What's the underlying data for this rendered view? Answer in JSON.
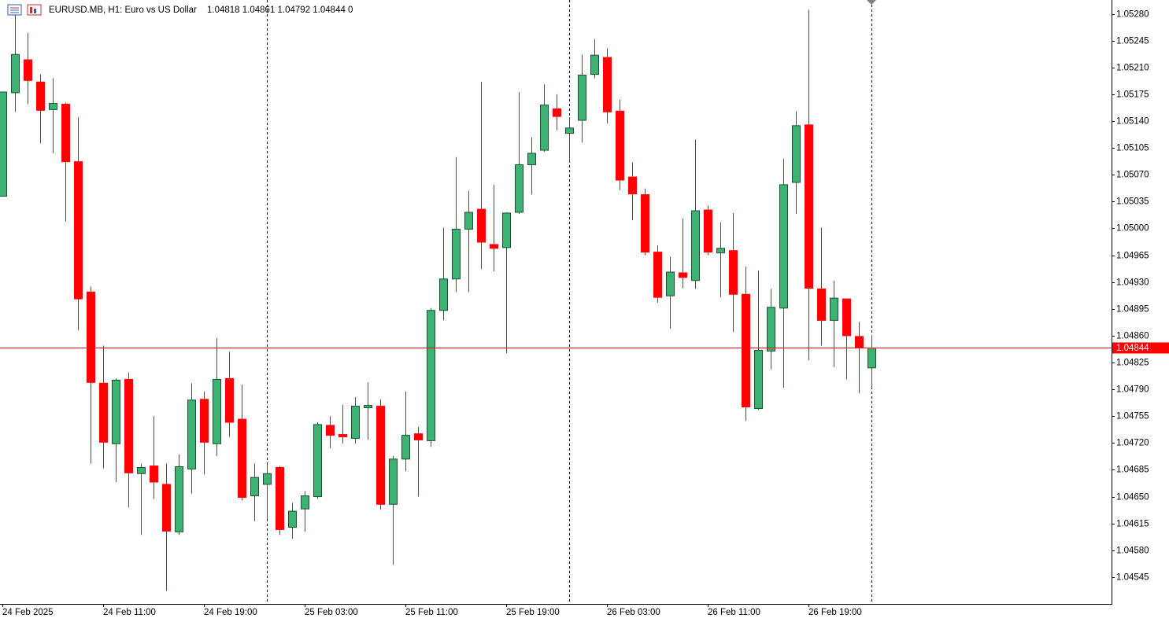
{
  "chart_data": {
    "type": "candlestick",
    "title": "EURUSD.MB, H1:  Euro vs US Dollar",
    "subtitle": "1.04818 1.04861 1.04792 1.04844  0",
    "categories": [
      "24 Feb 2025",
      null,
      null,
      null,
      null,
      null,
      null,
      null,
      "24 Feb 11:00",
      null,
      null,
      null,
      null,
      null,
      null,
      null,
      "24 Feb 19:00",
      null,
      null,
      null,
      null,
      null,
      null,
      null,
      "25 Feb 03:00",
      null,
      null,
      null,
      null,
      null,
      null,
      null,
      "25 Feb 11:00",
      null,
      null,
      null,
      null,
      null,
      null,
      null,
      "25 Feb 19:00",
      null,
      null,
      null,
      null,
      null,
      null,
      null,
      "26 Feb 03:00",
      null,
      null,
      null,
      null,
      null,
      null,
      null,
      "26 Feb 11:00",
      null,
      null,
      null,
      null,
      null,
      null,
      null,
      "26 Feb 19:00",
      null,
      null,
      null,
      null,
      null
    ],
    "open": [
      1.05042,
      1.05177,
      1.0522,
      1.05191,
      1.05155,
      1.05162,
      1.05087,
      1.04917,
      1.04798,
      1.04719,
      1.04803,
      1.0468,
      1.0469,
      1.04666,
      1.04604,
      1.04686,
      1.04777,
      1.04719,
      1.04804,
      1.04751,
      1.04651,
      1.04666,
      1.04688,
      1.0461,
      1.04634,
      1.0465,
      1.04743,
      1.04731,
      1.04726,
      1.04766,
      1.04768,
      1.0464,
      1.04699,
      1.04732,
      1.04723,
      1.04893,
      1.04934,
      1.04999,
      1.05025,
      1.04979,
      1.04975,
      1.05021,
      1.05083,
      1.05102,
      1.05156,
      1.05124,
      1.05141,
      1.05201,
      1.05223,
      1.05153,
      1.05067,
      1.05044,
      1.04969,
      1.04912,
      1.04942,
      1.04932,
      1.05024,
      1.04968,
      1.04971,
      1.04914,
      1.04765,
      1.0484,
      1.04896,
      1.0506,
      1.05135,
      1.04921,
      1.0488,
      1.04908,
      1.04859,
      1.04818
    ],
    "high": [
      1.05178,
      1.0528,
      1.05255,
      1.05201,
      1.05196,
      1.05164,
      1.05145,
      1.04924,
      1.04847,
      1.04804,
      1.04812,
      1.04693,
      1.04755,
      1.04693,
      1.04705,
      1.04798,
      1.04787,
      1.04857,
      1.04839,
      1.04796,
      1.04693,
      1.04693,
      1.0469,
      1.04642,
      1.04657,
      1.04747,
      1.04755,
      1.0477,
      1.0478,
      1.04799,
      1.04777,
      1.04703,
      1.04787,
      1.04741,
      1.04896,
      1.05001,
      1.05093,
      1.05049,
      1.05191,
      1.05057,
      1.05021,
      1.05178,
      1.05119,
      1.05188,
      1.05175,
      1.05145,
      1.05227,
      1.05247,
      1.05235,
      1.05168,
      1.05086,
      1.05052,
      1.04978,
      1.04963,
      1.05013,
      1.05116,
      1.0503,
      1.05008,
      1.0502,
      1.0495,
      1.04945,
      1.04921,
      1.05091,
      1.05153,
      1.05285,
      1.05001,
      1.04932,
      1.04908,
      1.04878,
      1.04861
    ],
    "low": [
      1.05042,
      1.05152,
      1.05162,
      1.05111,
      1.05098,
      1.05009,
      1.04867,
      1.04693,
      1.04687,
      1.04669,
      1.04636,
      1.046,
      1.04647,
      1.04527,
      1.046,
      1.04654,
      1.04679,
      1.04703,
      1.04728,
      1.04645,
      1.04618,
      1.04621,
      1.046,
      1.04595,
      1.04604,
      1.04647,
      1.04713,
      1.04719,
      1.04719,
      1.04724,
      1.04633,
      1.04561,
      1.04683,
      1.0465,
      1.04715,
      1.0488,
      1.04917,
      1.04917,
      1.04947,
      1.04944,
      1.04837,
      1.05019,
      1.05044,
      1.051,
      1.05128,
      1.05086,
      1.05112,
      1.05196,
      1.05137,
      1.0505,
      1.05011,
      1.04965,
      1.04903,
      1.04869,
      1.04922,
      1.04921,
      1.04965,
      1.0491,
      1.04865,
      1.04749,
      1.04763,
      1.04816,
      1.04792,
      1.05019,
      1.04828,
      1.04847,
      1.04819,
      1.04803,
      1.04785,
      1.04792
    ],
    "close": [
      1.05178,
      1.05227,
      1.05193,
      1.05154,
      1.05163,
      1.05087,
      1.04908,
      1.04799,
      1.04721,
      1.04802,
      1.04681,
      1.04688,
      1.04669,
      1.04605,
      1.04689,
      1.04776,
      1.04721,
      1.04803,
      1.04747,
      1.04649,
      1.04675,
      1.0468,
      1.04607,
      1.04631,
      1.04651,
      1.04744,
      1.0473,
      1.04728,
      1.04768,
      1.04769,
      1.0464,
      1.04699,
      1.0473,
      1.04724,
      1.04893,
      1.04934,
      1.04999,
      1.05021,
      1.04982,
      1.04974,
      1.0502,
      1.05083,
      1.05098,
      1.05161,
      1.05146,
      1.05131,
      1.052,
      1.05226,
      1.05152,
      1.05063,
      1.05045,
      1.04969,
      1.0491,
      1.04943,
      1.04936,
      1.05023,
      1.04969,
      1.04974,
      1.04914,
      1.04767,
      1.04841,
      1.04897,
      1.05057,
      1.05134,
      1.04922,
      1.0488,
      1.04909,
      1.0486,
      1.04845,
      1.04844
    ],
    "up_color": "#3cb371",
    "down_color": "#ff0000",
    "last_price": 1.04844,
    "last_price_color": "#ff0000",
    "ylim": [
      1.0451,
      1.05298
    ],
    "yticks": [
      {
        "value": 1.0528,
        "label": "1.05280"
      },
      1.05245,
      {
        "value": 1.0521,
        "label": "1.05210"
      },
      1.05175,
      {
        "value": 1.0514,
        "label": "1.05140"
      },
      1.05105,
      {
        "value": 1.0507,
        "label": "1.05070"
      },
      1.05035,
      {
        "value": 1.05,
        "label": "1.05000"
      },
      1.04965,
      {
        "value": 1.0493,
        "label": "1.04930"
      },
      1.04895,
      {
        "value": 1.0486,
        "label": "1.04860"
      },
      1.04825,
      {
        "value": 1.0479,
        "label": "1.04790"
      },
      1.04755,
      {
        "value": 1.0472,
        "label": "1.04720"
      },
      1.04685,
      {
        "value": 1.0465,
        "label": "1.04650"
      },
      1.04615,
      {
        "value": 1.0458,
        "label": "1.04580"
      },
      1.04545
    ]
  }
}
